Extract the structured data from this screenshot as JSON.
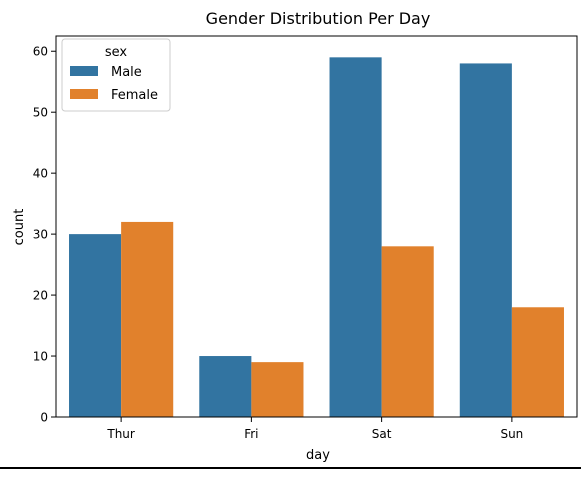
{
  "chart_data": {
    "type": "bar",
    "title": "Gender Distribution Per Day",
    "xlabel": "day",
    "ylabel": "count",
    "categories": [
      "Thur",
      "Fri",
      "Sat",
      "Sun"
    ],
    "series": [
      {
        "name": "Male",
        "values": [
          30,
          10,
          59,
          58
        ],
        "color": "#3274a1"
      },
      {
        "name": "Female",
        "values": [
          32,
          9,
          28,
          18
        ],
        "color": "#e1812c"
      }
    ],
    "ylim": [
      0,
      62.5
    ],
    "yticks": [
      0,
      10,
      20,
      30,
      40,
      50,
      60
    ],
    "grid": false,
    "legend": {
      "title": "sex",
      "placement": "top-left"
    }
  }
}
